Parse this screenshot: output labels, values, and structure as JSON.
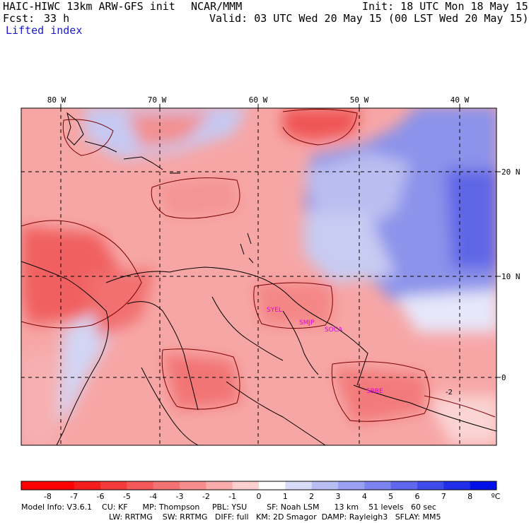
{
  "header": {
    "model": "HAIC-HIWC 13km ARW-GFS init",
    "org": "NCAR/MMM",
    "init": "Init: 18 UTC Mon 18 May 15",
    "fcst_label": "Fcst:",
    "fcst_value": "33 h",
    "valid": "Valid: 03 UTC Wed 20 May 15 (00 LST Wed 20 May 15)",
    "field": "Lifted index"
  },
  "map": {
    "lon_labels": [
      "80 W",
      "70 W",
      "60 W",
      "50 W",
      "40 W"
    ],
    "lat_labels": [
      "20 N",
      "10 N",
      "0"
    ],
    "stations": [
      "SYEL",
      "SMJP",
      "SOCA",
      "SBBE"
    ],
    "contour_label": "-2",
    "colors": {
      "border": "#000000",
      "station": "#e000e0"
    }
  },
  "colorbar": {
    "labels": [
      "-8",
      "-7",
      "-6",
      "-5",
      "-4",
      "-3",
      "-2",
      "-1",
      "0",
      "1",
      "2",
      "3",
      "4",
      "5",
      "6",
      "7",
      "8"
    ],
    "unit": "ºC",
    "colors": [
      "#ff0000",
      "#f61c1c",
      "#f43b3b",
      "#f55858",
      "#f57272",
      "#f88d8d",
      "#fbacac",
      "#fdcfcf",
      "#ffffff",
      "#d8dcf8",
      "#b8bdf4",
      "#9aa1f2",
      "#7c84f0",
      "#5e67ee",
      "#3f4aeb",
      "#202eea",
      "#0010e8"
    ]
  },
  "footer": {
    "line1": "Model Info: V3.6.1    CU: KF      MP: Thompson     PBL: YSU        SF: Noah LSM      13 km    51 levels   60 sec",
    "line2": "LW: RRTMG    SW: RRTMG   DIFF: full   KM: 2D Smagor  DAMP: Rayleigh3   SFLAY: MM5"
  }
}
